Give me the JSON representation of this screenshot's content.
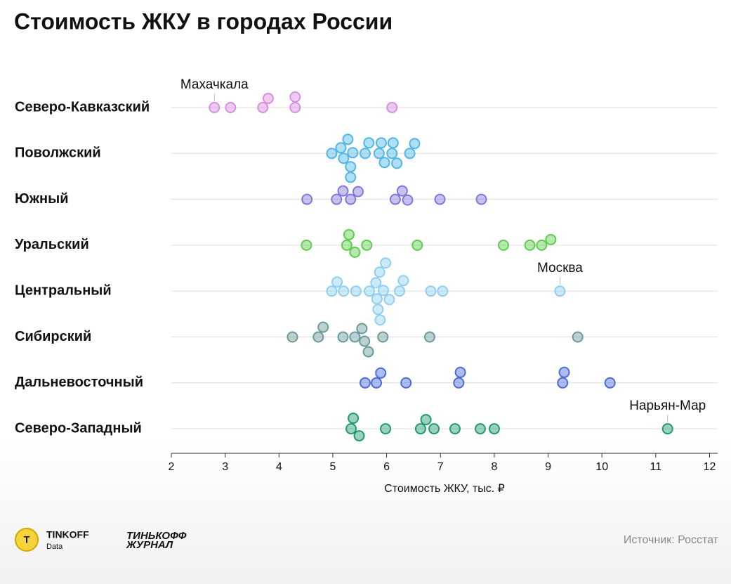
{
  "chart_data": {
    "type": "strip",
    "title": "Стоимость ЖКУ в городах России",
    "x_label": "Стоимость ЖКУ, тыс. ₽",
    "xlim": [
      2,
      12.15
    ],
    "xticks": [
      2,
      3,
      4,
      5,
      6,
      7,
      8,
      9,
      10,
      11,
      12
    ],
    "grid": true,
    "series": [
      {
        "name": "Северо-Кавказский",
        "color": "#d98fe0",
        "values": [
          2.8,
          3.1,
          3.7,
          3.8,
          4.3,
          4.3,
          6.1
        ],
        "annotation": {
          "text": "Махачкала",
          "value": 2.8
        }
      },
      {
        "name": "Поволжский",
        "color": "#4fb8e6",
        "values": [
          4.98,
          5.15,
          5.2,
          5.28,
          5.33,
          5.33,
          5.37,
          5.6,
          5.67,
          5.86,
          5.9,
          5.96,
          6.1,
          6.12,
          6.19,
          6.43,
          6.52
        ]
      },
      {
        "name": "Южный",
        "color": "#7f78d9",
        "values": [
          4.52,
          5.07,
          5.19,
          5.33,
          5.47,
          6.16,
          6.29,
          6.39,
          6.99,
          7.76
        ]
      },
      {
        "name": "Уральский",
        "color": "#5fcc4f",
        "values": [
          4.51,
          5.26,
          5.3,
          5.41,
          5.63,
          6.57,
          8.17,
          8.66,
          8.88,
          9.05
        ]
      },
      {
        "name": "Центральный",
        "color": "#8fd0f0",
        "values": [
          4.98,
          5.08,
          5.2,
          5.43,
          5.68,
          5.8,
          5.82,
          5.84,
          5.87,
          5.88,
          5.94,
          5.98,
          6.05,
          6.24,
          6.31,
          6.82,
          7.04,
          9.22
        ],
        "annotation": {
          "text": "Москва",
          "value": 9.22
        }
      },
      {
        "name": "Сибирский",
        "color": "#6a9a9a",
        "values": [
          4.25,
          4.73,
          4.82,
          5.19,
          5.41,
          5.54,
          5.59,
          5.66,
          5.93,
          6.8,
          9.55
        ]
      },
      {
        "name": "Дальневосточный",
        "color": "#4d6cd9",
        "values": [
          5.6,
          5.81,
          5.89,
          6.36,
          7.34,
          7.37,
          9.27,
          9.3,
          10.15
        ]
      },
      {
        "name": "Северо-Западный",
        "color": "#1f9a70",
        "values": [
          5.34,
          5.38,
          5.49,
          5.98,
          6.63,
          6.73,
          6.88,
          7.27,
          7.74,
          8.0,
          11.22
        ],
        "annotation": {
          "text": "Нарьян-Мар",
          "value": 11.22
        }
      }
    ]
  },
  "footer": {
    "brand": "TINKOFF",
    "brand_sub": "Data",
    "journal_line1": "ТИНЬКОФФ",
    "journal_line2": "ЖУРНАЛ",
    "source": "Источник: Росстат"
  }
}
